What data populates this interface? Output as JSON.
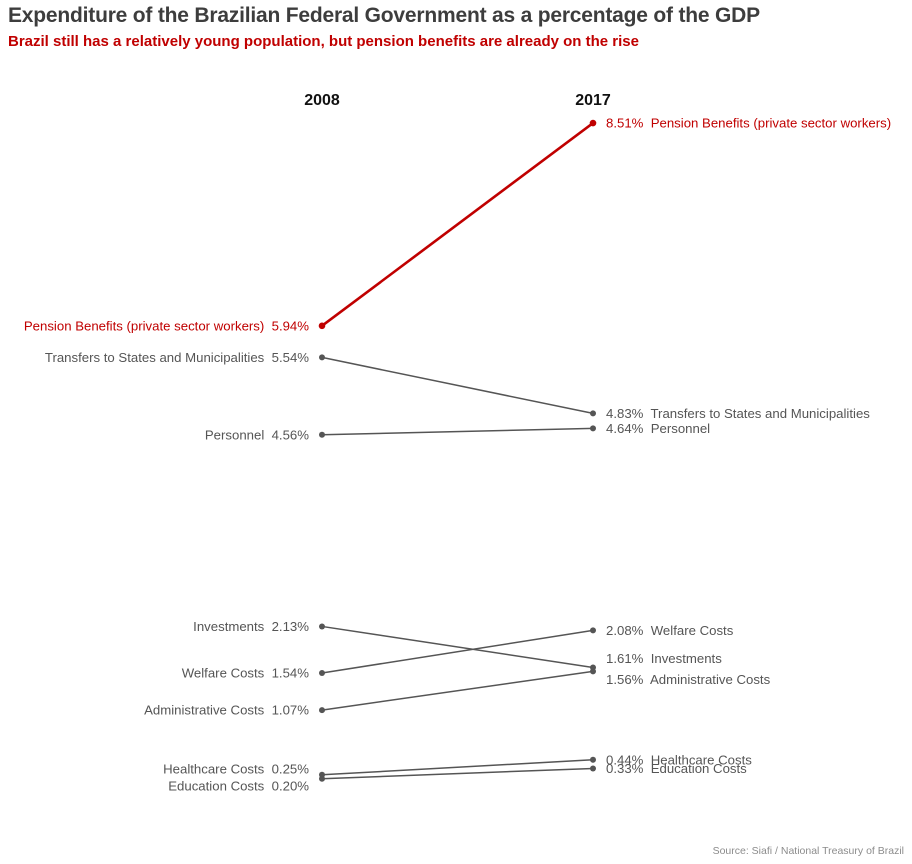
{
  "title": "Expenditure of the Brazilian Federal Government as a percentage of the GDP",
  "subtitle": "Brazil still has a relatively young population, but pension benefits are already on the rise",
  "source": "Source: Siafi / National Treasury of Brazil",
  "colors": {
    "highlight": "#c00000",
    "default": "#555555",
    "label": "#555555",
    "year_header": "#111111",
    "title": "#3d3d3d",
    "source": "#8c8c8c"
  },
  "chart_data": {
    "type": "slope",
    "x": [
      "2008",
      "2017"
    ],
    "unit": "% of GDP",
    "series": [
      {
        "name": "Pension Benefits (private sector workers)",
        "values": [
          5.94,
          8.51
        ],
        "highlight": true
      },
      {
        "name": "Transfers to States and Municipalities",
        "values": [
          5.54,
          4.83
        ],
        "highlight": false
      },
      {
        "name": "Personnel",
        "values": [
          4.56,
          4.64
        ],
        "highlight": false
      },
      {
        "name": "Investments",
        "values": [
          2.13,
          1.61
        ],
        "highlight": false
      },
      {
        "name": "Welfare Costs",
        "values": [
          1.54,
          2.08
        ],
        "highlight": false
      },
      {
        "name": "Administrative Costs",
        "values": [
          1.07,
          1.56
        ],
        "highlight": false
      },
      {
        "name": "Healthcare Costs",
        "values": [
          0.25,
          0.44
        ],
        "highlight": false
      },
      {
        "name": "Education Costs",
        "values": [
          0.2,
          0.33
        ],
        "highlight": false
      }
    ],
    "labels_2008": [
      "Pension Benefits (private sector workers)  5.94%",
      "Transfers to States and Municipalities  5.54%",
      "Personnel  4.56%",
      "Investments  2.13%",
      "Welfare Costs  1.54%",
      "Administrative Costs  1.07%",
      "Healthcare Costs  0.25%",
      "Education Costs  0.20%"
    ],
    "labels_2017": [
      "8.51%  Pension Benefits (private sector workers)",
      "4.83%  Transfers to States and Municipalities",
      "4.64%  Personnel",
      "1.61%  Investments",
      "2.08%  Welfare Costs",
      "1.56%  Administrative Costs",
      "0.44%  Healthcare Costs",
      "0.33%  Education Costs"
    ]
  }
}
